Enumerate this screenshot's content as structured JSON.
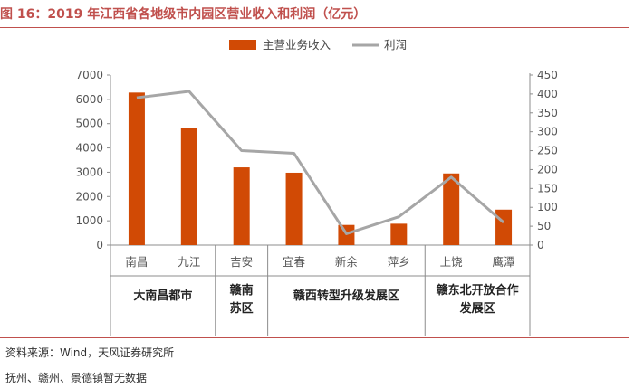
{
  "figure_title": "图 16：2019 年江西省各地级市内园区营业收入和利润（亿元）",
  "chart_data": {
    "type": "bar",
    "categories": [
      "南昌",
      "九江",
      "吉安",
      "宜春",
      "新余",
      "萍乡",
      "上饶",
      "鹰潭"
    ],
    "series": [
      {
        "name": "主营业务收入",
        "kind": "bar",
        "axis": "left",
        "color": "#d14a05",
        "values": [
          6280,
          4820,
          3200,
          2980,
          830,
          880,
          2950,
          1460
        ]
      },
      {
        "name": "利润",
        "kind": "line",
        "axis": "right",
        "color": "#a6a6a6",
        "values": [
          390,
          407,
          250,
          243,
          30,
          75,
          180,
          60
        ]
      }
    ],
    "left_axis": {
      "ylim": [
        0,
        7000
      ],
      "ticks": [
        "0",
        "1000",
        "2000",
        "3000",
        "4000",
        "5000",
        "6000",
        "7000"
      ]
    },
    "right_axis": {
      "ylim": [
        0,
        450
      ],
      "ticks": [
        "0",
        "50",
        "100",
        "150",
        "200",
        "250",
        "300",
        "350",
        "400",
        "450"
      ]
    },
    "groups": [
      {
        "lines": [
          "大南昌都市"
        ],
        "span": [
          0,
          1
        ]
      },
      {
        "lines": [
          "赣南",
          "苏区"
        ],
        "span": [
          2,
          2
        ]
      },
      {
        "lines": [
          "赣西转型升级发展区"
        ],
        "span": [
          3,
          5
        ]
      },
      {
        "lines": [
          "赣东北开放合作",
          "发展区"
        ],
        "span": [
          6,
          7
        ]
      }
    ],
    "legend_position": "top-center",
    "grid": false
  },
  "source": "资料来源：Wind，天风证券研究所",
  "note": "抚州、赣州、景德镇暂无数据"
}
